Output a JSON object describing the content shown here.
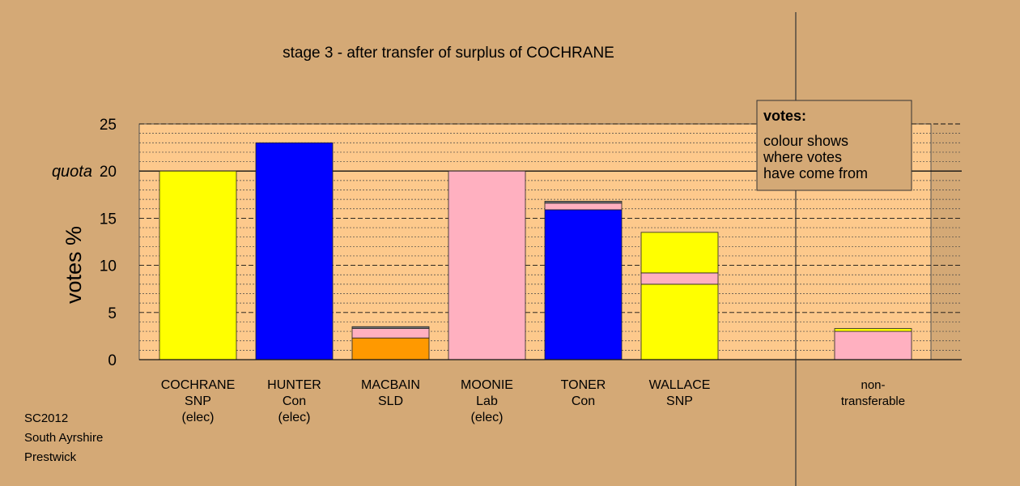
{
  "chart_data": {
    "type": "bar",
    "title": "stage 3 - after transfer of surplus of COCHRANE",
    "ylabel": "votes %",
    "ylim": [
      0,
      25
    ],
    "yticks": [
      0,
      5,
      10,
      15,
      20,
      25
    ],
    "quota_label": "quota",
    "quota": 20,
    "grid": true,
    "stacked": true,
    "categories": [
      {
        "lines": [
          "COCHRANE",
          "SNP",
          "(elec)"
        ]
      },
      {
        "lines": [
          "HUNTER",
          "Con",
          "(elec)"
        ]
      },
      {
        "lines": [
          "MACBAIN",
          "SLD"
        ]
      },
      {
        "lines": [
          "MOONIE",
          "Lab",
          "(elec)"
        ]
      },
      {
        "lines": [
          "TONER",
          "Con"
        ]
      },
      {
        "lines": [
          "WALLACE",
          "SNP"
        ]
      },
      {
        "lines": [
          "non-",
          "transferable"
        ]
      }
    ],
    "bars": [
      {
        "segments": [
          {
            "value": 20.0,
            "color": "#ffff00"
          }
        ]
      },
      {
        "segments": [
          {
            "value": 23.0,
            "color": "#0000ff"
          }
        ]
      },
      {
        "segments": [
          {
            "value": 2.3,
            "color": "#ff9900"
          },
          {
            "value": 1.0,
            "color": "#ffb0c0"
          },
          {
            "value": 0.2,
            "color": "#777777"
          }
        ]
      },
      {
        "segments": [
          {
            "value": 20.0,
            "color": "#ffb0c0"
          }
        ]
      },
      {
        "segments": [
          {
            "value": 15.9,
            "color": "#0000ff"
          },
          {
            "value": 0.7,
            "color": "#ffb0c0"
          },
          {
            "value": 0.2,
            "color": "#777777"
          }
        ]
      },
      {
        "segments": [
          {
            "value": 8.0,
            "color": "#ffff00"
          },
          {
            "value": 1.2,
            "color": "#ffb0c0"
          },
          {
            "value": 4.3,
            "color": "#ffff00"
          }
        ]
      },
      {
        "segments": [
          {
            "value": 3.0,
            "color": "#ffb0c0"
          },
          {
            "value": 0.3,
            "color": "#ffff00"
          }
        ]
      }
    ],
    "legend": {
      "title": "votes:",
      "lines": [
        "colour shows",
        "where votes",
        "have come from"
      ],
      "position": "top-right"
    },
    "colors": {
      "background": "#d4a976",
      "plot_background": "#fdc98c"
    }
  },
  "footer": {
    "line1": "SC2012",
    "line2": "South Ayrshire",
    "line3": "Prestwick"
  }
}
